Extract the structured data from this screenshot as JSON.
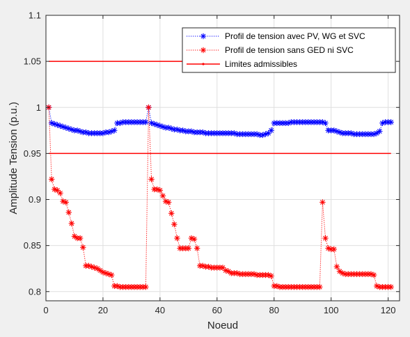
{
  "chart_data": {
    "type": "line",
    "xlabel": "Noeud",
    "ylabel": "Amplitude Tension (p.u.)",
    "xlim": [
      0,
      124
    ],
    "ylim": [
      0.79,
      1.1
    ],
    "xticks": [
      0,
      20,
      40,
      60,
      80,
      100,
      120
    ],
    "yticks": [
      0.8,
      0.85,
      0.9,
      0.95,
      1,
      1.05,
      1.1
    ],
    "ytick_labels": [
      "0.8",
      "0.85",
      "0.9",
      "0.95",
      "1",
      "1.05",
      "1.1"
    ],
    "grid": true,
    "legend_position": "top-right",
    "series": [
      {
        "name": "Profil de tension avec PV, WG et SVC",
        "color": "#0000ff",
        "marker": "asterisk",
        "line": "dotted",
        "x": [
          1,
          2,
          3,
          4,
          5,
          6,
          7,
          8,
          9,
          10,
          11,
          12,
          13,
          14,
          15,
          16,
          17,
          18,
          19,
          20,
          21,
          22,
          23,
          24,
          25,
          26,
          27,
          28,
          29,
          30,
          31,
          32,
          33,
          34,
          35,
          36,
          37,
          38,
          39,
          40,
          41,
          42,
          43,
          44,
          45,
          46,
          47,
          48,
          49,
          50,
          51,
          52,
          53,
          54,
          55,
          56,
          57,
          58,
          59,
          60,
          61,
          62,
          63,
          64,
          65,
          66,
          67,
          68,
          69,
          70,
          71,
          72,
          73,
          74,
          75,
          76,
          77,
          78,
          79,
          80,
          81,
          82,
          83,
          84,
          85,
          86,
          87,
          88,
          89,
          90,
          91,
          92,
          93,
          94,
          95,
          96,
          97,
          98,
          99,
          100,
          101,
          102,
          103,
          104,
          105,
          106,
          107,
          108,
          109,
          110,
          111,
          112,
          113,
          114,
          115,
          116,
          117,
          118,
          119,
          120,
          121
        ],
        "y": [
          1.0,
          0.983,
          0.982,
          0.981,
          0.98,
          0.979,
          0.978,
          0.977,
          0.976,
          0.975,
          0.975,
          0.974,
          0.973,
          0.973,
          0.972,
          0.972,
          0.972,
          0.972,
          0.972,
          0.972,
          0.973,
          0.973,
          0.974,
          0.975,
          0.983,
          0.983,
          0.984,
          0.984,
          0.984,
          0.984,
          0.984,
          0.984,
          0.984,
          0.984,
          0.984,
          1.0,
          0.983,
          0.982,
          0.981,
          0.98,
          0.979,
          0.978,
          0.978,
          0.977,
          0.976,
          0.976,
          0.975,
          0.975,
          0.974,
          0.974,
          0.974,
          0.973,
          0.973,
          0.973,
          0.973,
          0.972,
          0.972,
          0.972,
          0.972,
          0.972,
          0.972,
          0.972,
          0.972,
          0.972,
          0.972,
          0.972,
          0.971,
          0.971,
          0.971,
          0.971,
          0.971,
          0.971,
          0.971,
          0.971,
          0.97,
          0.97,
          0.971,
          0.972,
          0.975,
          0.983,
          0.983,
          0.983,
          0.983,
          0.983,
          0.983,
          0.984,
          0.984,
          0.984,
          0.984,
          0.984,
          0.984,
          0.984,
          0.984,
          0.984,
          0.984,
          0.984,
          0.984,
          0.983,
          0.975,
          0.975,
          0.975,
          0.974,
          0.973,
          0.972,
          0.972,
          0.972,
          0.972,
          0.971,
          0.971,
          0.971,
          0.971,
          0.971,
          0.971,
          0.971,
          0.971,
          0.972,
          0.974,
          0.983,
          0.984,
          0.984,
          0.984
        ]
      },
      {
        "name": "Profil de tension sans GED ni SVC",
        "color": "#ff0000",
        "marker": "asterisk",
        "line": "dotted",
        "x": [
          1,
          2,
          3,
          4,
          5,
          6,
          7,
          8,
          9,
          10,
          11,
          12,
          13,
          14,
          15,
          16,
          17,
          18,
          19,
          20,
          21,
          22,
          23,
          24,
          25,
          26,
          27,
          28,
          29,
          30,
          31,
          32,
          33,
          34,
          35,
          36,
          37,
          38,
          39,
          40,
          41,
          42,
          43,
          44,
          45,
          46,
          47,
          48,
          49,
          50,
          51,
          52,
          53,
          54,
          55,
          56,
          57,
          58,
          59,
          60,
          61,
          62,
          63,
          64,
          65,
          66,
          67,
          68,
          69,
          70,
          71,
          72,
          73,
          74,
          75,
          76,
          77,
          78,
          79,
          80,
          81,
          82,
          83,
          84,
          85,
          86,
          87,
          88,
          89,
          90,
          91,
          92,
          93,
          94,
          95,
          96,
          97,
          98,
          99,
          100,
          101,
          102,
          103,
          104,
          105,
          106,
          107,
          108,
          109,
          110,
          111,
          112,
          113,
          114,
          115,
          116,
          117,
          118,
          119,
          120,
          121
        ],
        "y": [
          1.0,
          0.922,
          0.911,
          0.91,
          0.907,
          0.898,
          0.897,
          0.886,
          0.874,
          0.86,
          0.858,
          0.858,
          0.848,
          0.828,
          0.828,
          0.827,
          0.826,
          0.825,
          0.823,
          0.821,
          0.82,
          0.819,
          0.818,
          0.806,
          0.806,
          0.805,
          0.805,
          0.805,
          0.805,
          0.805,
          0.805,
          0.805,
          0.805,
          0.805,
          0.805,
          1.0,
          0.922,
          0.911,
          0.911,
          0.91,
          0.904,
          0.898,
          0.897,
          0.885,
          0.873,
          0.858,
          0.847,
          0.847,
          0.847,
          0.847,
          0.858,
          0.857,
          0.847,
          0.828,
          0.828,
          0.827,
          0.827,
          0.826,
          0.826,
          0.826,
          0.826,
          0.826,
          0.823,
          0.822,
          0.82,
          0.82,
          0.82,
          0.819,
          0.819,
          0.819,
          0.819,
          0.819,
          0.819,
          0.818,
          0.818,
          0.818,
          0.818,
          0.818,
          0.817,
          0.806,
          0.806,
          0.805,
          0.805,
          0.805,
          0.805,
          0.805,
          0.805,
          0.805,
          0.805,
          0.805,
          0.805,
          0.805,
          0.805,
          0.805,
          0.805,
          0.805,
          0.897,
          0.858,
          0.847,
          0.846,
          0.846,
          0.827,
          0.822,
          0.82,
          0.819,
          0.819,
          0.819,
          0.819,
          0.819,
          0.819,
          0.819,
          0.819,
          0.819,
          0.819,
          0.818,
          0.806,
          0.805,
          0.805,
          0.805,
          0.805,
          0.805
        ]
      },
      {
        "name": "Limites admissibles",
        "color": "#ff0000",
        "marker": "point",
        "line": "solid",
        "segments": [
          {
            "x": [
              1,
              121
            ],
            "y": [
              1.05,
              1.05
            ]
          },
          {
            "x": [
              1,
              121
            ],
            "y": [
              0.95,
              0.95
            ]
          }
        ]
      }
    ]
  }
}
